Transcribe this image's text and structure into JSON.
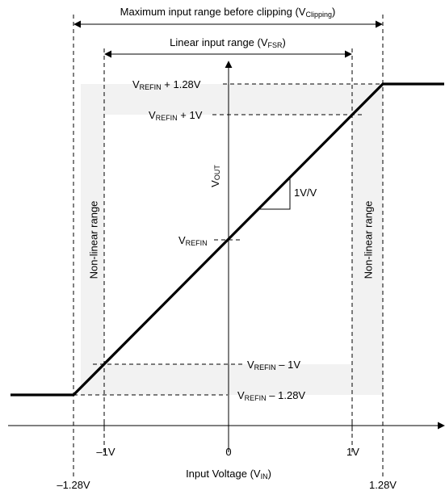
{
  "diagram": {
    "top_arrow_label": {
      "text": "Maximum input range before clipping (V",
      "sub": "Clipping",
      "close": ")"
    },
    "mid_arrow_label": {
      "text": "Linear input range (V",
      "sub": "FSR",
      "close": ")"
    },
    "nonlinear_left": "Non-linear range",
    "nonlinear_right": "Non-linear range",
    "slope_label": "1V/V",
    "y_axis_label": {
      "main": "V",
      "sub": "OUT"
    },
    "x_axis_label": {
      "text": "Input Voltage (V",
      "sub": "IN",
      "close": ")"
    },
    "y_levels": {
      "top": {
        "main": "V",
        "sub": "REFIN",
        "suffix": " + 1.28V"
      },
      "upper": {
        "main": "V",
        "sub": "REFIN",
        "suffix": " + 1V"
      },
      "mid": {
        "main": "V",
        "sub": "REFIN",
        "suffix": ""
      },
      "lower": {
        "main": "V",
        "sub": "REFIN",
        "suffix": " – 1V"
      },
      "bottom": {
        "main": "V",
        "sub": "REFIN",
        "suffix": " – 1.28V"
      }
    },
    "x_ticks": {
      "neg_clip": "–1.28V",
      "neg_fsr": "–1V",
      "zero": "0",
      "pos_fsr": "1V",
      "pos_clip": "1.28V"
    },
    "colors": {
      "line": "#000000",
      "shade": "#f2f2f2"
    }
  }
}
